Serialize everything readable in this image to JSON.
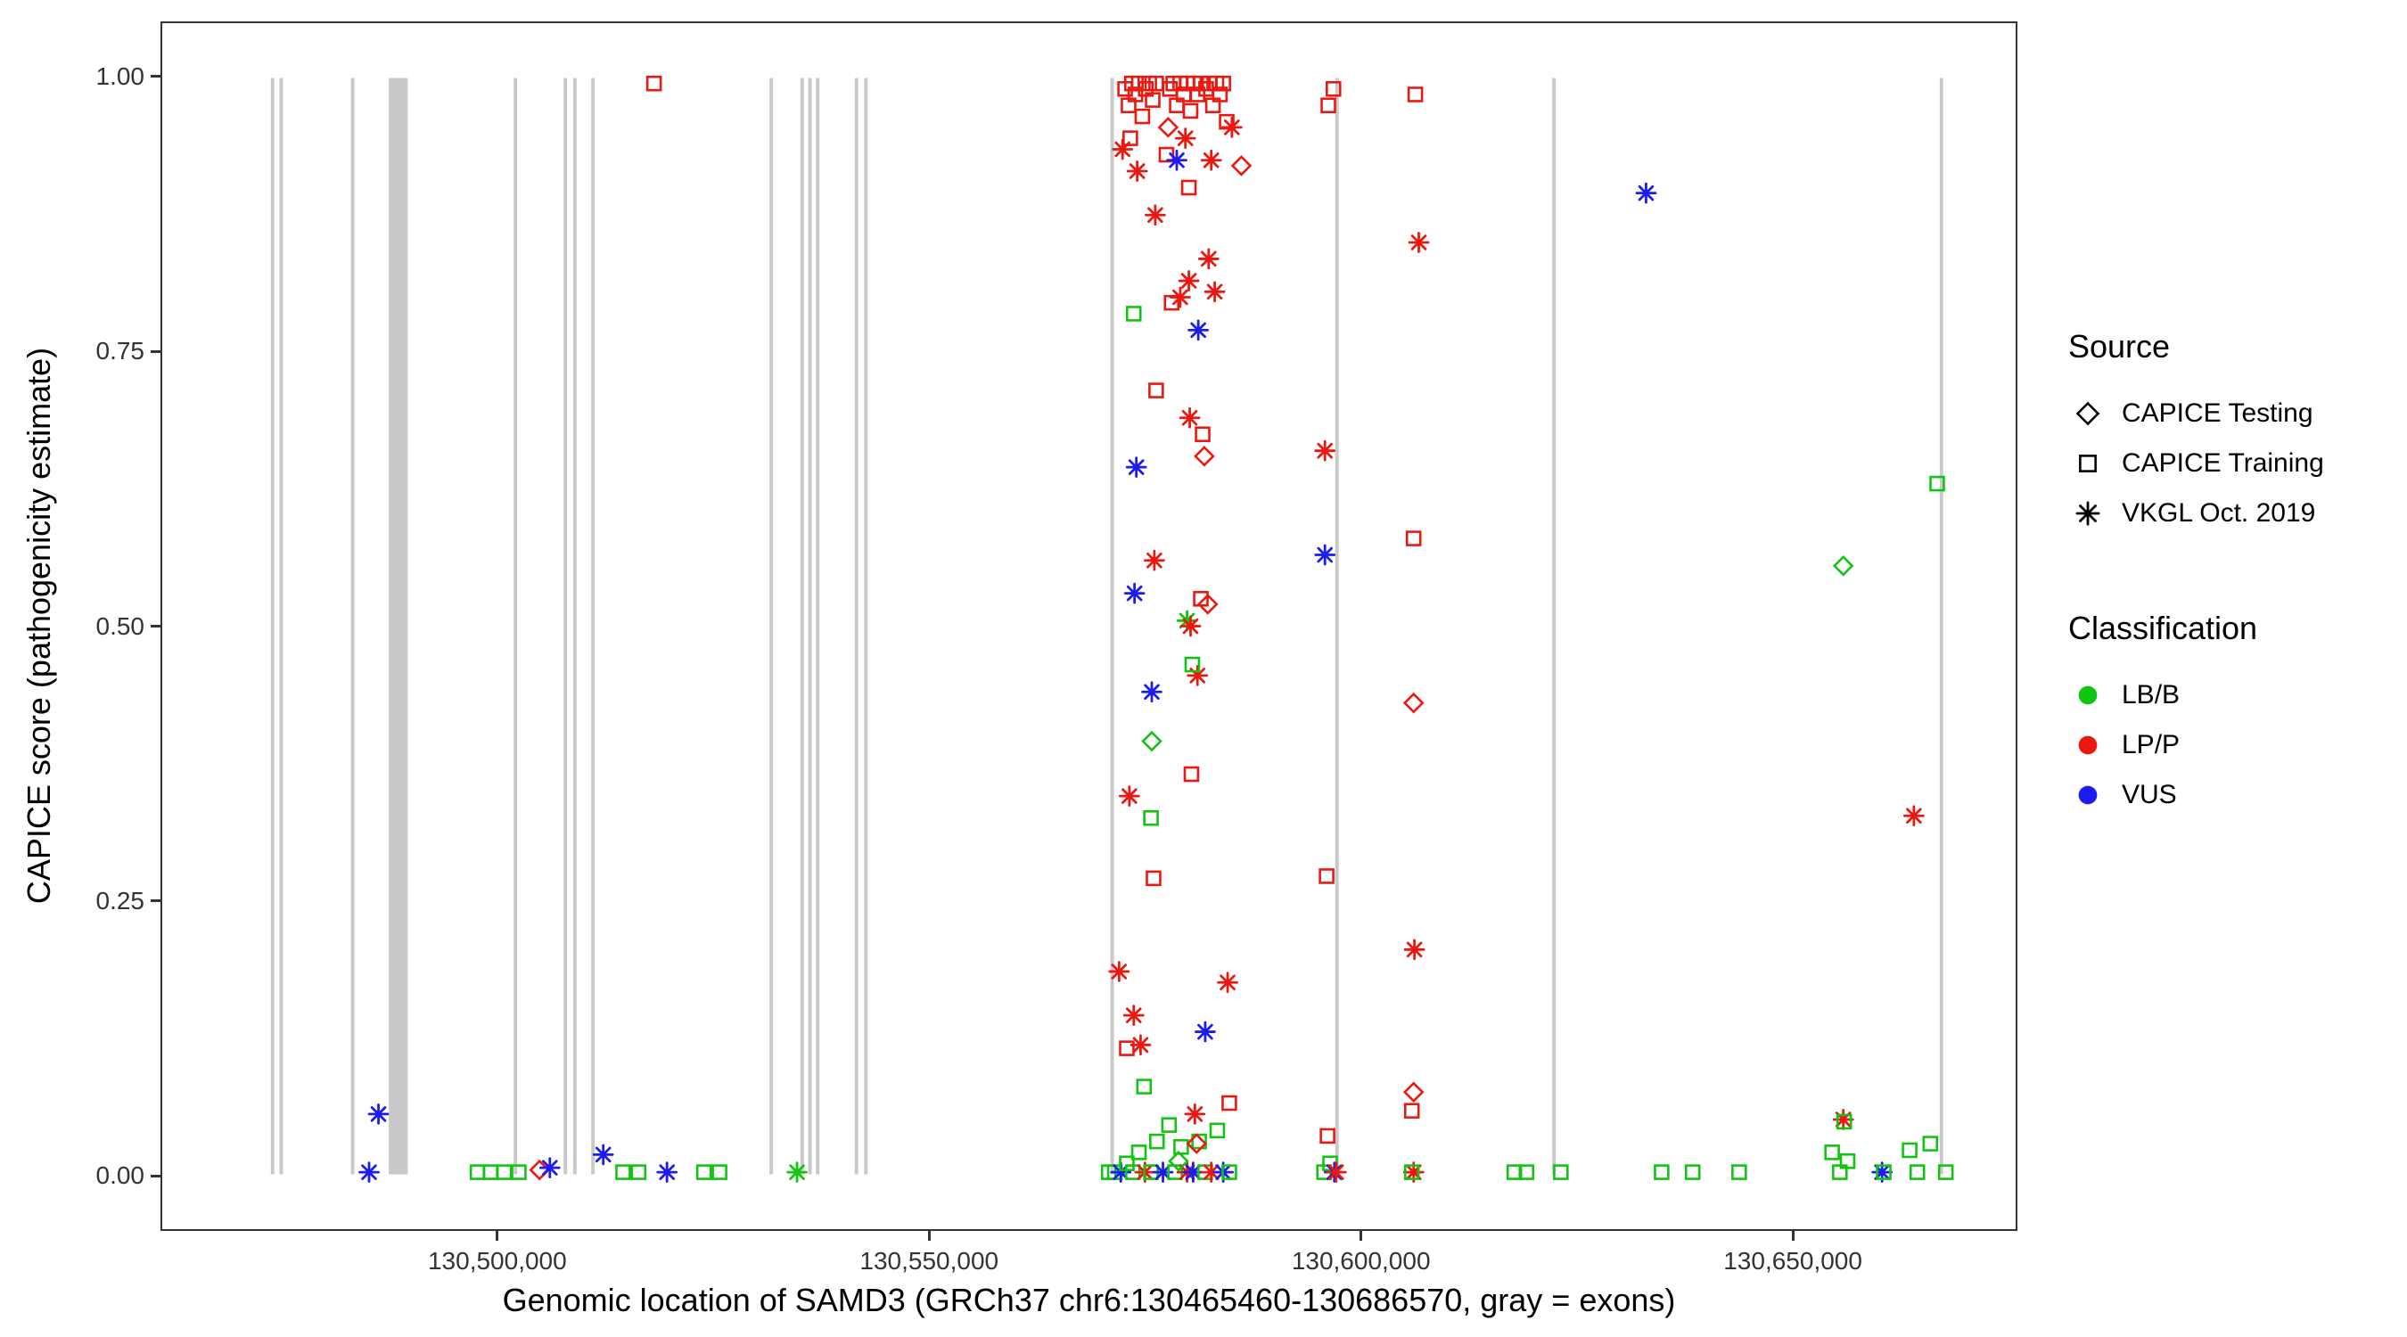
{
  "chart_data": {
    "type": "scatter",
    "title": "",
    "xlabel": "Genomic location of SAMD3 (GRCh37 chr6:130465460-130686570, gray = exons)",
    "ylabel": "CAPICE score (pathogenicity estimate)",
    "xlim": [
      130461000,
      130676000
    ],
    "ylim": [
      -0.05,
      1.05
    ],
    "x_ticks": [
      {
        "value": 130500000,
        "label": "130,500,000"
      },
      {
        "value": 130550000,
        "label": "130,550,000"
      },
      {
        "value": 130600000,
        "label": "130,600,000"
      },
      {
        "value": 130650000,
        "label": "130,650,000"
      }
    ],
    "y_ticks": [
      {
        "value": 0.0,
        "label": "0.00"
      },
      {
        "value": 0.25,
        "label": "0.25"
      },
      {
        "value": 0.5,
        "label": "0.50"
      },
      {
        "value": 0.75,
        "label": "0.75"
      },
      {
        "value": 1.0,
        "label": "1.00"
      }
    ],
    "grid": false,
    "legend_position": "right",
    "exon_color": "#c9c9c9",
    "exons": [
      [
        130473500,
        130473900
      ],
      [
        130474500,
        130474900
      ],
      [
        130482800,
        130483200
      ],
      [
        130487200,
        130489400
      ],
      [
        130501700,
        130502100
      ],
      [
        130507500,
        130507900
      ],
      [
        130508600,
        130509000
      ],
      [
        130510700,
        130511100
      ],
      [
        130531400,
        130531800
      ],
      [
        130535000,
        130535400
      ],
      [
        130535900,
        130536300
      ],
      [
        130536800,
        130537200
      ],
      [
        130541300,
        130541700
      ],
      [
        130542400,
        130542800
      ],
      [
        130571000,
        130571400
      ],
      [
        130597100,
        130597500
      ],
      [
        130622300,
        130622700
      ],
      [
        130667300,
        130667700
      ]
    ],
    "classification_colors": {
      "LB/B": "#12c412",
      "LP/P": "#ea1810",
      "VUS": "#1c1cf0"
    },
    "source_shapes": {
      "CAPICE Testing": "diamond",
      "CAPICE Training": "square",
      "VKGL Oct. 2019": "asterisk"
    },
    "points": [
      [
        130484900,
        0.002,
        "asterisk",
        "VUS"
      ],
      [
        130486000,
        0.055,
        "asterisk",
        "VUS"
      ],
      [
        130497500,
        0.002,
        "square",
        "LB/B"
      ],
      [
        130499000,
        0.002,
        "square",
        "LB/B"
      ],
      [
        130500600,
        0.002,
        "square",
        "LB/B"
      ],
      [
        130502300,
        0.002,
        "square",
        "LB/B"
      ],
      [
        130504700,
        0.004,
        "diamond",
        "LP/P"
      ],
      [
        130505900,
        0.006,
        "asterisk",
        "VUS"
      ],
      [
        130512100,
        0.018,
        "asterisk",
        "VUS"
      ],
      [
        130514400,
        0.002,
        "square",
        "LB/B"
      ],
      [
        130516200,
        0.002,
        "square",
        "LB/B"
      ],
      [
        130518000,
        0.995,
        "square",
        "LP/P"
      ],
      [
        130519500,
        0.002,
        "asterisk",
        "VUS"
      ],
      [
        130523800,
        0.002,
        "square",
        "LB/B"
      ],
      [
        130525600,
        0.002,
        "square",
        "LB/B"
      ],
      [
        130534600,
        0.002,
        "asterisk",
        "LB/B"
      ],
      [
        130572700,
        0.99,
        "square",
        "LP/P"
      ],
      [
        130573100,
        0.975,
        "square",
        "LP/P"
      ],
      [
        130573500,
        0.995,
        "square",
        "LP/P"
      ],
      [
        130573900,
        0.985,
        "square",
        "LP/P"
      ],
      [
        130574300,
        0.995,
        "square",
        "LP/P"
      ],
      [
        130574700,
        0.965,
        "square",
        "LP/P"
      ],
      [
        130575100,
        0.99,
        "square",
        "LP/P"
      ],
      [
        130575500,
        0.995,
        "square",
        "LP/P"
      ],
      [
        130575900,
        0.98,
        "square",
        "LP/P"
      ],
      [
        130576300,
        0.995,
        "square",
        "LP/P"
      ],
      [
        130577900,
        0.99,
        "square",
        "LP/P"
      ],
      [
        130578300,
        0.995,
        "square",
        "LP/P"
      ],
      [
        130578700,
        0.975,
        "square",
        "LP/P"
      ],
      [
        130579100,
        0.995,
        "square",
        "LP/P"
      ],
      [
        130579500,
        0.985,
        "square",
        "LP/P"
      ],
      [
        130579900,
        0.995,
        "square",
        "LP/P"
      ],
      [
        130580300,
        0.97,
        "square",
        "LP/P"
      ],
      [
        130580700,
        0.995,
        "square",
        "LP/P"
      ],
      [
        130581100,
        0.985,
        "square",
        "LP/P"
      ],
      [
        130581500,
        0.995,
        "square",
        "LP/P"
      ],
      [
        130582100,
        0.99,
        "square",
        "LP/P"
      ],
      [
        130582500,
        0.995,
        "square",
        "LP/P"
      ],
      [
        130582900,
        0.975,
        "square",
        "LP/P"
      ],
      [
        130583300,
        0.995,
        "square",
        "LP/P"
      ],
      [
        130583700,
        0.985,
        "square",
        "LP/P"
      ],
      [
        130584100,
        0.995,
        "square",
        "LP/P"
      ],
      [
        130584500,
        0.96,
        "square",
        "LP/P"
      ],
      [
        130573300,
        0.945,
        "square",
        "LP/P"
      ],
      [
        130577500,
        0.93,
        "square",
        "LP/P"
      ],
      [
        130580100,
        0.9,
        "square",
        "LP/P"
      ],
      [
        130572400,
        0.935,
        "asterisk",
        "LP/P"
      ],
      [
        130574100,
        0.915,
        "asterisk",
        "LP/P"
      ],
      [
        130576200,
        0.875,
        "asterisk",
        "LP/P"
      ],
      [
        130579700,
        0.945,
        "asterisk",
        "LP/P"
      ],
      [
        130582700,
        0.925,
        "asterisk",
        "LP/P"
      ],
      [
        130585100,
        0.955,
        "asterisk",
        "LP/P"
      ],
      [
        130578700,
        0.925,
        "asterisk",
        "VUS"
      ],
      [
        130586200,
        0.92,
        "diamond",
        "LP/P"
      ],
      [
        130577700,
        0.955,
        "diamond",
        "LP/P"
      ],
      [
        130580100,
        0.815,
        "asterisk",
        "LP/P"
      ],
      [
        130582400,
        0.835,
        "asterisk",
        "LP/P"
      ],
      [
        130579100,
        0.8,
        "asterisk",
        "LP/P"
      ],
      [
        130583100,
        0.805,
        "asterisk",
        "LP/P"
      ],
      [
        130578100,
        0.795,
        "square",
        "LP/P"
      ],
      [
        130581200,
        0.77,
        "asterisk",
        "VUS"
      ],
      [
        130573700,
        0.785,
        "square",
        "LB/B"
      ],
      [
        130576300,
        0.715,
        "square",
        "LP/P"
      ],
      [
        130580200,
        0.69,
        "asterisk",
        "LP/P"
      ],
      [
        130581700,
        0.675,
        "square",
        "LP/P"
      ],
      [
        130581900,
        0.655,
        "diamond",
        "LP/P"
      ],
      [
        130574000,
        0.645,
        "asterisk",
        "VUS"
      ],
      [
        130595900,
        0.66,
        "asterisk",
        "LP/P"
      ],
      [
        130573800,
        0.53,
        "asterisk",
        "VUS"
      ],
      [
        130576100,
        0.56,
        "asterisk",
        "LP/P"
      ],
      [
        130595900,
        0.565,
        "asterisk",
        "VUS"
      ],
      [
        130606200,
        0.58,
        "square",
        "LP/P"
      ],
      [
        130581500,
        0.525,
        "square",
        "LP/P"
      ],
      [
        130582300,
        0.52,
        "diamond",
        "LP/P"
      ],
      [
        130579900,
        0.505,
        "asterisk",
        "LB/B"
      ],
      [
        130580300,
        0.5,
        "asterisk",
        "LP/P"
      ],
      [
        130581100,
        0.455,
        "asterisk",
        "LP/P"
      ],
      [
        130580500,
        0.465,
        "square",
        "LB/B"
      ],
      [
        130575800,
        0.44,
        "asterisk",
        "VUS"
      ],
      [
        130606200,
        0.43,
        "diamond",
        "LP/P"
      ],
      [
        130575800,
        0.395,
        "diamond",
        "LB/B"
      ],
      [
        130580400,
        0.365,
        "square",
        "LP/P"
      ],
      [
        130573200,
        0.345,
        "asterisk",
        "LP/P"
      ],
      [
        130575700,
        0.325,
        "square",
        "LB/B"
      ],
      [
        130576000,
        0.27,
        "square",
        "LP/P"
      ],
      [
        130596100,
        0.272,
        "square",
        "LP/P"
      ],
      [
        130606300,
        0.205,
        "asterisk",
        "LP/P"
      ],
      [
        130572000,
        0.185,
        "asterisk",
        "LP/P"
      ],
      [
        130584600,
        0.175,
        "asterisk",
        "LP/P"
      ],
      [
        130573700,
        0.145,
        "asterisk",
        "LP/P"
      ],
      [
        130582000,
        0.13,
        "asterisk",
        "VUS"
      ],
      [
        130572900,
        0.115,
        "square",
        "LP/P"
      ],
      [
        130574500,
        0.118,
        "asterisk",
        "LP/P"
      ],
      [
        130574900,
        0.08,
        "square",
        "LB/B"
      ],
      [
        130584800,
        0.065,
        "square",
        "LP/P"
      ],
      [
        130606200,
        0.075,
        "diamond",
        "LP/P"
      ],
      [
        130606000,
        0.058,
        "square",
        "LP/P"
      ],
      [
        130580800,
        0.055,
        "asterisk",
        "LP/P"
      ],
      [
        130570800,
        0.002,
        "square",
        "LB/B"
      ],
      [
        130571500,
        0.002,
        "square",
        "LB/B"
      ],
      [
        130572200,
        0.002,
        "asterisk",
        "VUS"
      ],
      [
        130572900,
        0.01,
        "square",
        "LB/B"
      ],
      [
        130573600,
        0.002,
        "square",
        "LB/B"
      ],
      [
        130574300,
        0.02,
        "square",
        "LB/B"
      ],
      [
        130575000,
        0.002,
        "asterisk",
        "LP/P"
      ],
      [
        130575700,
        0.002,
        "square",
        "LB/B"
      ],
      [
        130576400,
        0.03,
        "square",
        "LB/B"
      ],
      [
        130577100,
        0.002,
        "asterisk",
        "VUS"
      ],
      [
        130577800,
        0.045,
        "square",
        "LB/B"
      ],
      [
        130578500,
        0.002,
        "square",
        "LB/B"
      ],
      [
        130579200,
        0.025,
        "square",
        "LB/B"
      ],
      [
        130579900,
        0.002,
        "asterisk",
        "LP/P"
      ],
      [
        130580600,
        0.002,
        "asterisk",
        "VUS"
      ],
      [
        130581300,
        0.03,
        "square",
        "LB/B"
      ],
      [
        130582000,
        0.002,
        "square",
        "LB/B"
      ],
      [
        130582700,
        0.002,
        "asterisk",
        "LP/P"
      ],
      [
        130583400,
        0.04,
        "square",
        "LB/B"
      ],
      [
        130584100,
        0.002,
        "asterisk",
        "VUS"
      ],
      [
        130584800,
        0.002,
        "square",
        "LB/B"
      ],
      [
        130581000,
        0.028,
        "diamond",
        "LP/P"
      ],
      [
        130578900,
        0.012,
        "diamond",
        "LB/B"
      ],
      [
        130596200,
        0.035,
        "square",
        "LP/P"
      ],
      [
        130595800,
        0.002,
        "square",
        "LB/B"
      ],
      [
        130596500,
        0.01,
        "square",
        "LB/B"
      ],
      [
        130597000,
        0.002,
        "asterisk",
        "VUS"
      ],
      [
        130597200,
        0.002,
        "asterisk",
        "LP/P"
      ],
      [
        130606200,
        0.002,
        "asterisk",
        "LP/P"
      ],
      [
        130606000,
        0.002,
        "square",
        "LB/B"
      ],
      [
        130617900,
        0.002,
        "square",
        "LB/B"
      ],
      [
        130619300,
        0.002,
        "square",
        "LB/B"
      ],
      [
        130623300,
        0.002,
        "square",
        "LB/B"
      ],
      [
        130635000,
        0.002,
        "square",
        "LB/B"
      ],
      [
        130638600,
        0.002,
        "square",
        "LB/B"
      ],
      [
        130644000,
        0.002,
        "square",
        "LB/B"
      ],
      [
        130654800,
        0.02,
        "square",
        "LB/B"
      ],
      [
        130655700,
        0.002,
        "square",
        "LB/B"
      ],
      [
        130656600,
        0.012,
        "square",
        "LB/B"
      ],
      [
        130656100,
        0.05,
        "asterisk",
        "LP/P"
      ],
      [
        130656200,
        0.048,
        "square",
        "LB/B"
      ],
      [
        130660600,
        0.002,
        "asterisk",
        "VUS"
      ],
      [
        130660800,
        0.002,
        "square",
        "LB/B"
      ],
      [
        130663800,
        0.022,
        "square",
        "LB/B"
      ],
      [
        130664700,
        0.002,
        "square",
        "LB/B"
      ],
      [
        130666200,
        0.028,
        "square",
        "LB/B"
      ],
      [
        130668000,
        0.002,
        "square",
        "LB/B"
      ],
      [
        130633200,
        0.895,
        "asterisk",
        "VUS"
      ],
      [
        130656100,
        0.555,
        "diamond",
        "LB/B"
      ],
      [
        130667000,
        0.63,
        "square",
        "LB/B"
      ],
      [
        130664300,
        0.327,
        "asterisk",
        "LP/P"
      ],
      [
        130596300,
        0.975,
        "square",
        "LP/P"
      ],
      [
        130596900,
        0.99,
        "square",
        "LP/P"
      ],
      [
        130606400,
        0.985,
        "square",
        "LP/P"
      ],
      [
        130606800,
        0.85,
        "asterisk",
        "LP/P"
      ]
    ]
  },
  "legend": {
    "source": {
      "title": "Source",
      "items": [
        {
          "label": "CAPICE Testing",
          "shape": "diamond"
        },
        {
          "label": "CAPICE Training",
          "shape": "square"
        },
        {
          "label": "VKGL Oct. 2019",
          "shape": "asterisk"
        }
      ]
    },
    "classification": {
      "title": "Classification",
      "items": [
        {
          "label": "LB/B",
          "color": "#12c412"
        },
        {
          "label": "LP/P",
          "color": "#ea1810"
        },
        {
          "label": "VUS",
          "color": "#1c1cf0"
        }
      ]
    }
  }
}
